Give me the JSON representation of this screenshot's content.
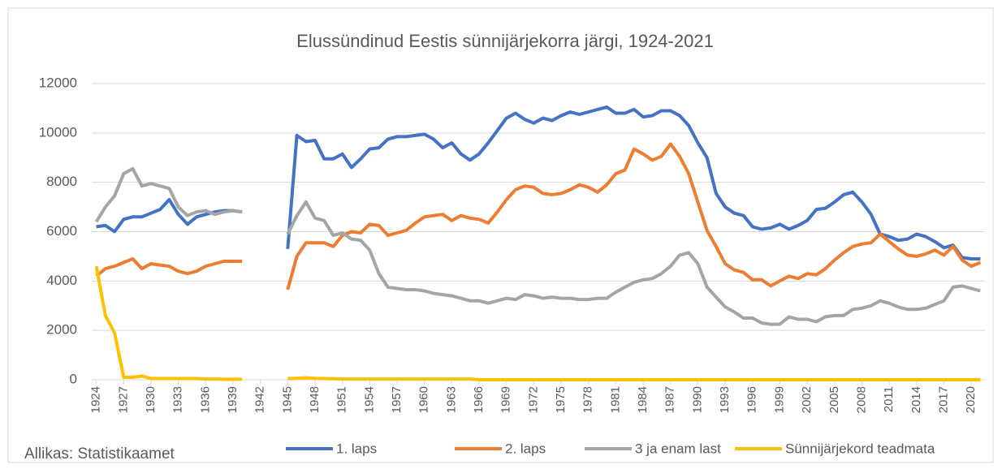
{
  "chart_data": {
    "type": "line",
    "title": "Elussündinud  Eestis sünnijärjekorra  järgi, 1924-2021",
    "source": "Allikas: Statistikaamet",
    "x": [
      1924,
      1925,
      1926,
      1927,
      1928,
      1929,
      1930,
      1931,
      1932,
      1933,
      1934,
      1935,
      1936,
      1937,
      1938,
      1939,
      1940,
      1941,
      1942,
      1943,
      1944,
      1945,
      1946,
      1947,
      1948,
      1949,
      1950,
      1951,
      1952,
      1953,
      1954,
      1955,
      1956,
      1957,
      1958,
      1959,
      1960,
      1961,
      1962,
      1963,
      1964,
      1965,
      1966,
      1967,
      1968,
      1969,
      1970,
      1971,
      1972,
      1973,
      1974,
      1975,
      1976,
      1977,
      1978,
      1979,
      1980,
      1981,
      1982,
      1983,
      1984,
      1985,
      1986,
      1987,
      1988,
      1989,
      1990,
      1991,
      1992,
      1993,
      1994,
      1995,
      1996,
      1997,
      1998,
      1999,
      2000,
      2001,
      2002,
      2003,
      2004,
      2005,
      2006,
      2007,
      2008,
      2009,
      2010,
      2011,
      2012,
      2013,
      2014,
      2015,
      2016,
      2017,
      2018,
      2019,
      2020,
      2021
    ],
    "xlim": [
      1923.5,
      2021.5
    ],
    "xticks": [
      1924,
      1927,
      1930,
      1933,
      1936,
      1939,
      1942,
      1945,
      1948,
      1951,
      1954,
      1957,
      1960,
      1963,
      1966,
      1969,
      1972,
      1975,
      1978,
      1981,
      1984,
      1987,
      1990,
      1993,
      1996,
      1999,
      2002,
      2005,
      2008,
      2011,
      2014,
      2017,
      2020
    ],
    "ylim": [
      0,
      12000
    ],
    "yticks": [
      0,
      2000,
      4000,
      6000,
      8000,
      10000,
      12000
    ],
    "grid": true,
    "legend": "bottom",
    "series": [
      {
        "name": "1. laps",
        "color": "#4472c4",
        "values": [
          6200,
          6250,
          6000,
          6500,
          6600,
          6600,
          6750,
          6900,
          7300,
          6700,
          6300,
          6600,
          6700,
          6800,
          6850,
          6850,
          6800,
          null,
          null,
          null,
          null,
          5300,
          9900,
          9650,
          9700,
          8950,
          8950,
          9150,
          8600,
          8950,
          9350,
          9400,
          9750,
          9850,
          9850,
          9900,
          9950,
          9750,
          9400,
          9600,
          9150,
          8900,
          9150,
          9600,
          10100,
          10600,
          10800,
          10550,
          10400,
          10600,
          10500,
          10700,
          10850,
          10750,
          10850,
          10950,
          11050,
          10800,
          10800,
          10950,
          10650,
          10700,
          10900,
          10900,
          10700,
          10300,
          9600,
          9000,
          7550,
          7000,
          6750,
          6650,
          6200,
          6100,
          6150,
          6300,
          6100,
          6250,
          6450,
          6900,
          6950,
          7200,
          7500,
          7600,
          7200,
          6700,
          5900,
          5800,
          5650,
          5700,
          5900,
          5800,
          5600,
          5350,
          5450,
          4950,
          4900,
          4900
        ]
      },
      {
        "name": "2. laps",
        "color": "#ed7d31",
        "values": [
          4200,
          4500,
          4600,
          4750,
          4900,
          4500,
          4700,
          4650,
          4600,
          4400,
          4300,
          4400,
          4600,
          4700,
          4800,
          4800,
          4800,
          null,
          null,
          null,
          null,
          3650,
          5000,
          5550,
          5550,
          5550,
          5400,
          5850,
          6000,
          5950,
          6300,
          6250,
          5850,
          5950,
          6050,
          6350,
          6600,
          6650,
          6700,
          6450,
          6650,
          6550,
          6500,
          6350,
          6800,
          7300,
          7700,
          7850,
          7800,
          7550,
          7500,
          7550,
          7700,
          7900,
          7800,
          7600,
          7900,
          8350,
          8500,
          9350,
          9150,
          8900,
          9050,
          9550,
          9050,
          8350,
          7200,
          6050,
          5400,
          4700,
          4450,
          4350,
          4050,
          4050,
          3800,
          4000,
          4200,
          4100,
          4300,
          4250,
          4500,
          4850,
          5150,
          5400,
          5500,
          5550,
          5900,
          5600,
          5300,
          5050,
          5000,
          5100,
          5250,
          5050,
          5400,
          4850,
          4600,
          4750
        ]
      },
      {
        "name": "3 ja enam last",
        "color": "#a5a5a5",
        "values": [
          6400,
          7000,
          7450,
          8350,
          8550,
          7850,
          7950,
          7850,
          7750,
          7000,
          6650,
          6800,
          6850,
          6700,
          6800,
          6850,
          6800,
          null,
          null,
          null,
          null,
          5900,
          6650,
          7200,
          6550,
          6450,
          5850,
          5950,
          5700,
          5650,
          5250,
          4300,
          3750,
          3700,
          3650,
          3650,
          3600,
          3500,
          3450,
          3400,
          3300,
          3200,
          3200,
          3100,
          3200,
          3300,
          3250,
          3450,
          3400,
          3300,
          3350,
          3300,
          3300,
          3250,
          3250,
          3300,
          3300,
          3550,
          3750,
          3950,
          4050,
          4100,
          4300,
          4600,
          5050,
          5150,
          4700,
          3750,
          3350,
          2950,
          2750,
          2500,
          2500,
          2300,
          2250,
          2250,
          2550,
          2450,
          2450,
          2350,
          2550,
          2600,
          2600,
          2850,
          2900,
          3000,
          3200,
          3100,
          2950,
          2850,
          2850,
          2900,
          3050,
          3200,
          3750,
          3800,
          3700,
          3600
        ]
      },
      {
        "name": "Sünnijärjekord teadmata",
        "color": "#ffc000",
        "values": [
          4600,
          2600,
          1900,
          100,
          100,
          150,
          50,
          50,
          50,
          50,
          50,
          50,
          30,
          30,
          20,
          20,
          20,
          null,
          null,
          null,
          null,
          50,
          60,
          80,
          60,
          50,
          40,
          30,
          30,
          30,
          30,
          30,
          30,
          30,
          30,
          30,
          30,
          30,
          30,
          30,
          30,
          30,
          0,
          0,
          0,
          0,
          0,
          0,
          0,
          0,
          0,
          0,
          0,
          0,
          0,
          0,
          0,
          0,
          0,
          0,
          0,
          0,
          0,
          0,
          0,
          0,
          0,
          0,
          0,
          0,
          0,
          0,
          0,
          0,
          0,
          0,
          0,
          0,
          0,
          0,
          0,
          0,
          0,
          0,
          0,
          0,
          0,
          0,
          0,
          0,
          0,
          0,
          0,
          0,
          0,
          0,
          0,
          0
        ]
      }
    ]
  }
}
